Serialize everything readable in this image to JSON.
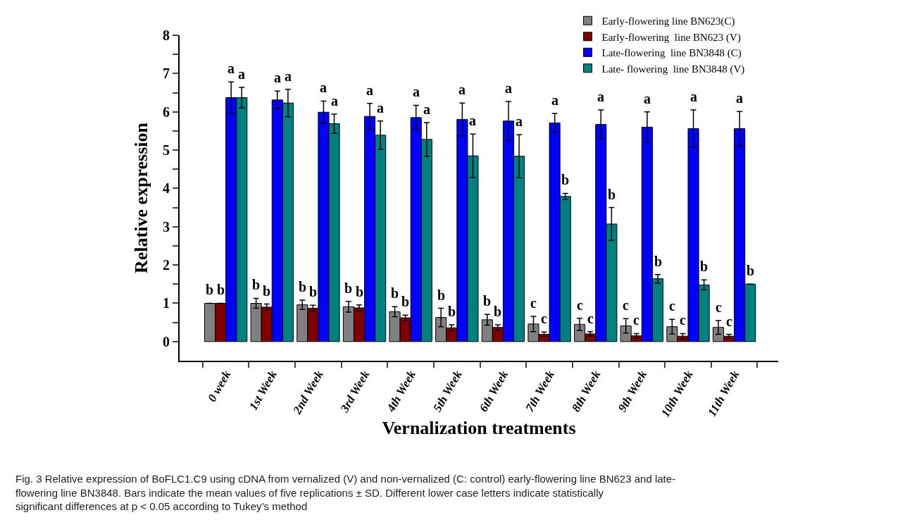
{
  "chart_data": {
    "type": "bar",
    "xlabel": "Vernalization treatments",
    "ylabel": "Relative expression",
    "categories": [
      "0 week",
      "1st Week",
      "2nd Week",
      "3rd Week",
      "4th Week",
      "5th Week",
      "6th Week",
      "7th Week",
      "8th Week",
      "9th Week",
      "10th Week",
      "11th Week"
    ],
    "series": [
      {
        "name": "Early-flowering line BN623(C)",
        "color": "#808080",
        "values": [
          1.0,
          1.0,
          0.96,
          0.91,
          0.78,
          0.63,
          0.57,
          0.46,
          0.45,
          0.41,
          0.39,
          0.37
        ],
        "errors": [
          null,
          0.13,
          0.12,
          0.14,
          0.13,
          0.24,
          0.14,
          0.2,
          0.16,
          0.19,
          0.19,
          0.18
        ],
        "value_labels": [
          "b",
          "b",
          "b",
          "b",
          "b",
          "b",
          "b",
          "c",
          "c",
          "c",
          "c",
          "c"
        ]
      },
      {
        "name": "Early-flowering  line BN623 (V)",
        "color": "#800000",
        "values": [
          1.0,
          0.9,
          0.87,
          0.88,
          0.62,
          0.36,
          0.37,
          0.19,
          0.2,
          0.15,
          0.14,
          0.14
        ],
        "errors": [
          null,
          0.08,
          0.08,
          0.08,
          0.07,
          0.08,
          0.07,
          0.06,
          0.06,
          0.06,
          0.07,
          0.05
        ],
        "value_labels": [
          "b",
          "b",
          "b",
          "b",
          "b",
          "b",
          "b",
          "c",
          "c",
          "c",
          "c",
          "c"
        ]
      },
      {
        "name": "Late-flowering  line BN3848 (C)",
        "color": "#0000ff",
        "values": [
          6.37,
          6.31,
          5.99,
          5.88,
          5.85,
          5.8,
          5.76,
          5.71,
          5.67,
          5.6,
          5.56,
          5.56
        ],
        "errors": [
          0.41,
          0.23,
          0.29,
          0.34,
          0.32,
          0.43,
          0.51,
          0.25,
          0.38,
          0.4,
          0.49,
          0.45
        ],
        "value_labels": [
          "a",
          "a",
          "a",
          "a",
          "a",
          "a",
          "a",
          "a",
          "a",
          "a",
          "a",
          "a"
        ]
      },
      {
        "name": "Late- flowering  line BN3848 (V)",
        "color": "#008080",
        "values": [
          6.37,
          6.23,
          5.69,
          5.39,
          5.28,
          4.85,
          4.84,
          3.79,
          3.07,
          1.64,
          1.48,
          1.5
        ],
        "errors": [
          0.27,
          0.36,
          0.25,
          0.37,
          0.44,
          0.57,
          0.56,
          0.08,
          0.43,
          0.11,
          0.13,
          null
        ],
        "value_labels": [
          "a",
          "a",
          "a",
          "a",
          "a",
          "a",
          "a",
          "b",
          "b",
          "b",
          "b",
          "b"
        ]
      }
    ],
    "ylim": [
      -0.5,
      8
    ],
    "yticks": [
      0,
      {
        "value": 0.5,
        "label": null
      },
      1,
      {
        "value": 1.5,
        "label": null
      },
      2,
      {
        "value": 2.5,
        "label": null
      },
      3,
      {
        "value": 3.5,
        "label": null
      },
      4,
      {
        "value": 4.5,
        "label": null
      },
      5,
      {
        "value": 5.5,
        "label": null
      },
      6,
      {
        "value": 6.5,
        "label": null
      },
      7,
      {
        "value": 7.5,
        "label": null
      },
      8
    ],
    "legend": "top right",
    "annotations": [
      "Fig. 3 Relative expression of BoFLC1.C9 using cDNA from vernalized (V) and non-vernalized (C: control) early-flowering line BN623 and late-flowering line BN3848. Bars indicate the mean values of five replications ± SD. Different lower case letters indicate statistically significant differences at p < 0.05 according to Tukey’s method"
    ]
  }
}
